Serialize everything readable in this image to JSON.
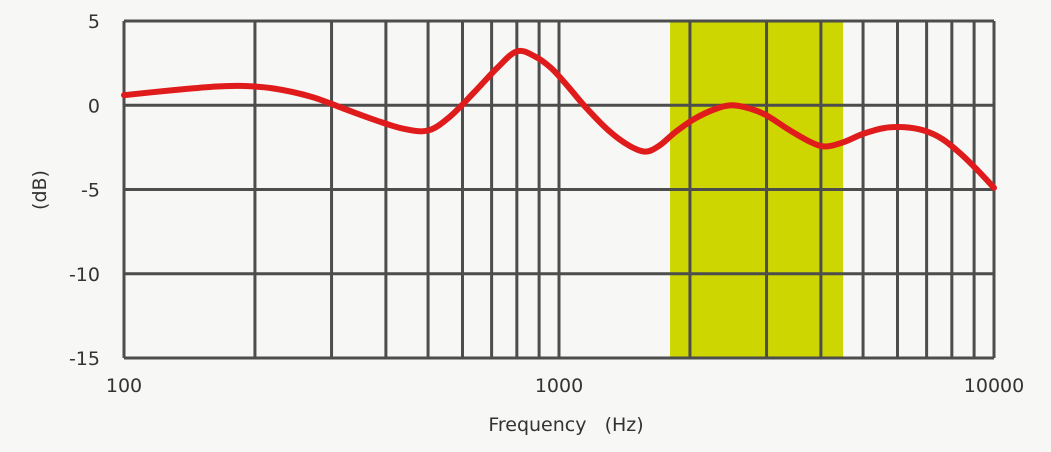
{
  "chart_data": {
    "type": "line",
    "title": "",
    "xlabel": "Frequency   (Hz)",
    "ylabel": "(dB)",
    "x_scale": "log",
    "xlim": [
      100,
      10000
    ],
    "ylim": [
      -15,
      5
    ],
    "x_ticks": [
      {
        "value": 100,
        "label": "100"
      },
      {
        "value": 1000,
        "label": "1000"
      },
      {
        "value": 10000,
        "label": "10000"
      }
    ],
    "y_ticks": [
      {
        "value": 5,
        "label": "5"
      },
      {
        "value": 0,
        "label": "0"
      },
      {
        "value": -5,
        "label": "-5"
      },
      {
        "value": -10,
        "label": "-10"
      },
      {
        "value": -15,
        "label": "-15"
      }
    ],
    "grid": true,
    "highlight_band": {
      "x_range": [
        1800,
        4500
      ],
      "color": "#cdd600"
    },
    "series": [
      {
        "color": "#e01b1b",
        "points": [
          [
            100,
            0.6
          ],
          [
            130,
            0.9
          ],
          [
            160,
            1.1
          ],
          [
            185,
            1.15
          ],
          [
            220,
            1.0
          ],
          [
            270,
            0.5
          ],
          [
            320,
            -0.2
          ],
          [
            380,
            -0.9
          ],
          [
            440,
            -1.4
          ],
          [
            500,
            -1.5
          ],
          [
            560,
            -0.7
          ],
          [
            640,
            0.8
          ],
          [
            720,
            2.2
          ],
          [
            800,
            3.2
          ],
          [
            880,
            2.9
          ],
          [
            960,
            2.2
          ],
          [
            1050,
            1.1
          ],
          [
            1150,
            -0.1
          ],
          [
            1300,
            -1.5
          ],
          [
            1450,
            -2.4
          ],
          [
            1580,
            -2.75
          ],
          [
            1700,
            -2.4
          ],
          [
            1850,
            -1.6
          ],
          [
            2050,
            -0.8
          ],
          [
            2300,
            -0.2
          ],
          [
            2500,
            0.0
          ],
          [
            2750,
            -0.2
          ],
          [
            3000,
            -0.6
          ],
          [
            3400,
            -1.5
          ],
          [
            3800,
            -2.2
          ],
          [
            4100,
            -2.45
          ],
          [
            4500,
            -2.2
          ],
          [
            5000,
            -1.7
          ],
          [
            5600,
            -1.35
          ],
          [
            6200,
            -1.3
          ],
          [
            6900,
            -1.5
          ],
          [
            7600,
            -2.0
          ],
          [
            8400,
            -2.9
          ],
          [
            9200,
            -3.9
          ],
          [
            10000,
            -4.9
          ]
        ]
      }
    ],
    "colors": {
      "background": "#f7f7f5",
      "grid": "#4d4d4d",
      "line": "#e01b1b",
      "band": "#cdd600"
    }
  }
}
